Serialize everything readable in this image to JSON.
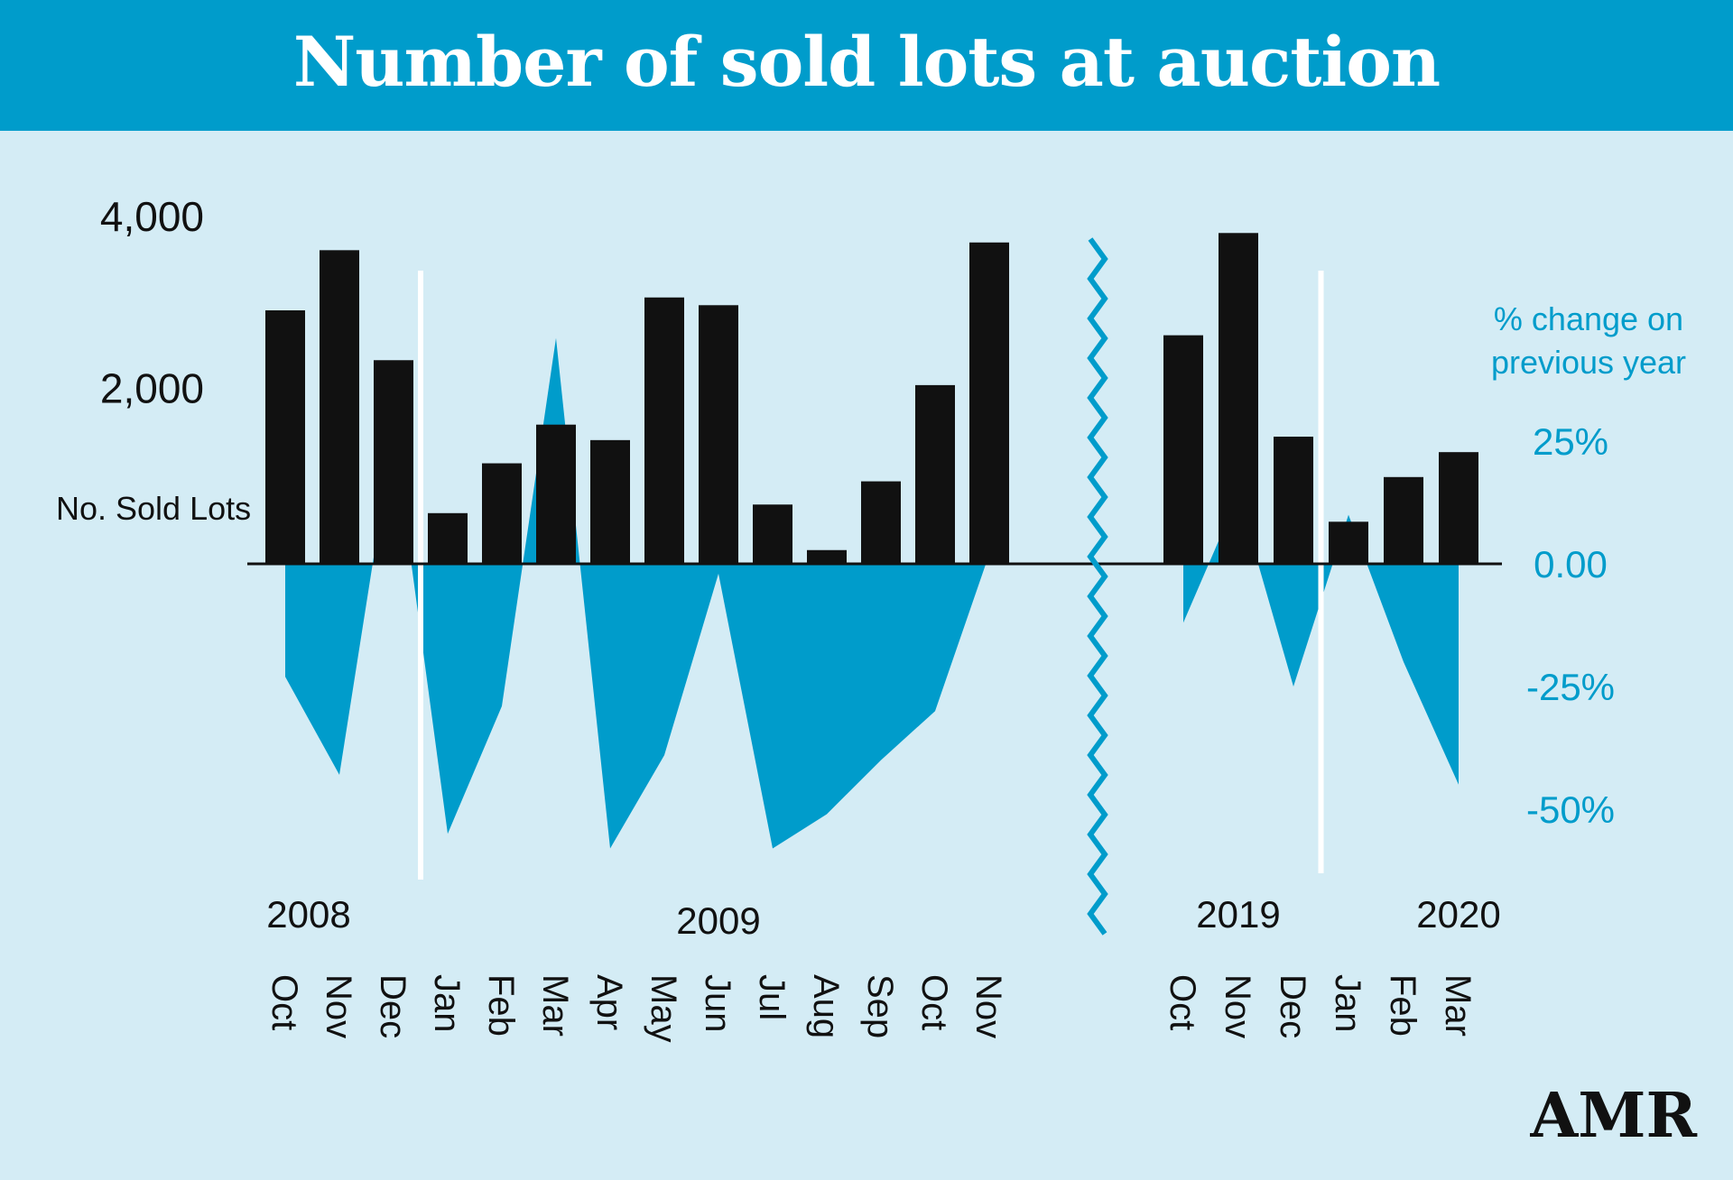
{
  "chart_data": {
    "type": "bar",
    "title": "Number of sold lots at auction",
    "left_axis": {
      "label": "No. Sold Lots",
      "ticks": [
        {
          "value": 4000,
          "label": "4,000"
        },
        {
          "value": 2000,
          "label": "2,000"
        }
      ],
      "ylim": [
        0,
        4000
      ]
    },
    "right_axis": {
      "label_line1": "% change on",
      "label_line2": "previous year",
      "ticks": [
        {
          "value": 25,
          "label": "25%"
        },
        {
          "value": 0,
          "label": "0.00"
        },
        {
          "value": -25,
          "label": "-25%"
        },
        {
          "value": -50,
          "label": "-50%"
        }
      ]
    },
    "segments": [
      {
        "months": [
          "Oct",
          "Nov",
          "Dec",
          "Jan",
          "Feb",
          "Mar",
          "Apr",
          "May",
          "Jun",
          "Jul",
          "Aug",
          "Sep",
          "Oct",
          "Nov"
        ],
        "sold_lots": [
          2950,
          3650,
          2370,
          590,
          1170,
          1620,
          1440,
          3100,
          3010,
          690,
          160,
          960,
          2080,
          3740
        ],
        "pct_change": [
          -23,
          -43,
          27,
          -55,
          -29,
          46,
          -58,
          -39,
          -2,
          -58,
          -51,
          -40,
          -30,
          2
        ],
        "year_labels": [
          {
            "label": "2008",
            "at_index": 0
          },
          {
            "label": "2009",
            "at_index": 8
          }
        ],
        "year_divider_after_index": 2
      },
      {
        "months": [
          "Oct",
          "Nov",
          "Dec",
          "Jan",
          "Feb",
          "Mar"
        ],
        "sold_lots": [
          2660,
          3850,
          1480,
          490,
          1010,
          1300
        ],
        "pct_change": [
          -12,
          14,
          -25,
          10,
          -20,
          -45
        ],
        "year_labels": [
          {
            "label": "2019",
            "at_index": 1
          },
          {
            "label": "2020",
            "at_index": 5
          }
        ],
        "year_divider_after_index": 2
      }
    ],
    "colors": {
      "bars": "#111111",
      "change_area": "#009ccb",
      "background": "#d4ecf5",
      "header": "#009ccb",
      "divider": "#ffffff"
    }
  },
  "logo": "AMR"
}
